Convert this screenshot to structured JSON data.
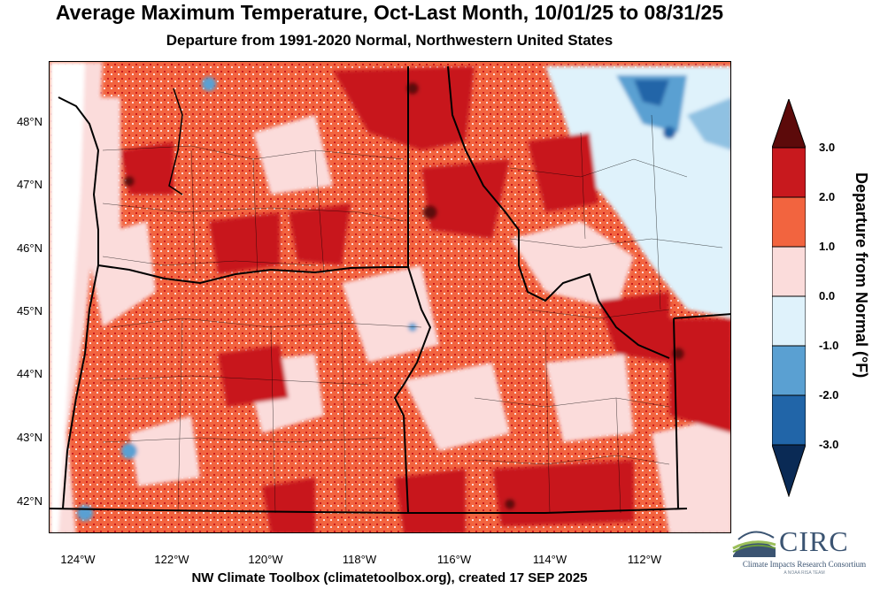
{
  "title": "Average Maximum Temperature, Oct-Last Month, 10/01/25 to 08/31/25",
  "subtitle": "Departure from 1991-2020 Normal, Northwestern United States",
  "footer": "NW Climate Toolbox (climatetoolbox.org), created 17 SEP 2025",
  "lat_labels": [
    "48°N",
    "47°N",
    "46°N",
    "45°N",
    "44°N",
    "43°N",
    "42°N"
  ],
  "lon_labels": [
    "124°W",
    "122°W",
    "120°W",
    "118°W",
    "116°W",
    "114°W",
    "112°W"
  ],
  "legend": {
    "title": "Departure from Normal (°F)",
    "labels": [
      "3.0",
      "2.0",
      "1.0",
      "0.0",
      "-1.0",
      "-2.0",
      "-3.0"
    ],
    "colors": [
      "#5c0a0a",
      "#c8191e",
      "#f2643f",
      "#fbdcdb",
      "#dff2fb",
      "#5aa0d2",
      "#2165a8",
      "#0a2a55"
    ]
  },
  "logo": {
    "name": "CIRC",
    "full_name": "Climate Impacts Research Consortium",
    "tagline": "A NOAA RISA TEAM"
  }
}
